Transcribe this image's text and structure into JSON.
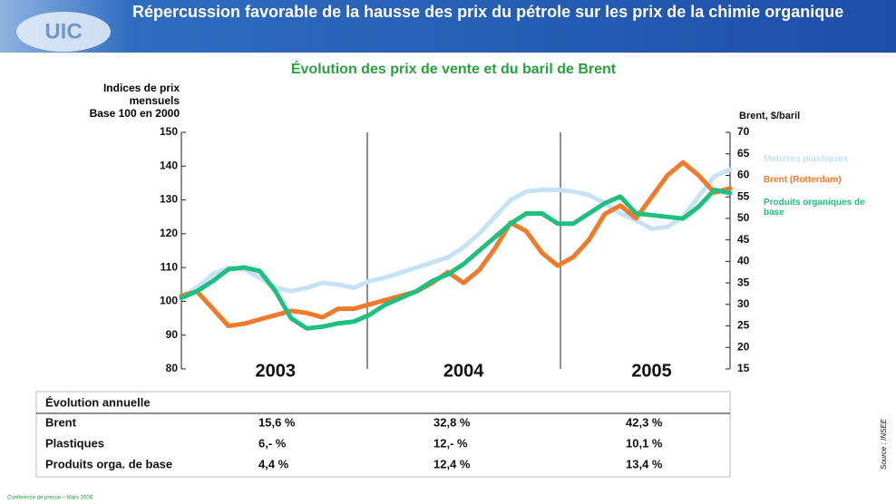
{
  "header": {
    "logo": "UIC",
    "title": "Répercussion favorable de la hausse des prix du pétrole sur les prix de la chimie organique"
  },
  "chart_data": {
    "type": "line",
    "title": "Évolution des prix de vente et du baril de Brent",
    "ylabel": "Indices de prix\nmensuels\nBase 100 en 2000",
    "y2label": "Brent, $/baril",
    "categories": [
      null,
      null,
      null,
      null,
      null,
      null,
      "2003",
      null,
      null,
      null,
      null,
      null,
      null,
      null,
      null,
      null,
      null,
      null,
      "2004",
      null,
      null,
      null,
      null,
      null,
      null,
      null,
      null,
      null,
      null,
      null,
      "2005",
      null,
      null,
      null,
      null,
      null
    ],
    "ylim": [
      80,
      150
    ],
    "yticks": [
      80,
      90,
      100,
      110,
      120,
      130,
      140,
      150
    ],
    "y2lim": [
      15,
      70
    ],
    "y2ticks": [
      15,
      20,
      25,
      30,
      35,
      40,
      45,
      50,
      55,
      60,
      65,
      70
    ],
    "series": [
      {
        "name": "Matières plastiques",
        "color": "#c6e2f7",
        "values": [
          101.5,
          104,
          108,
          110,
          109.5,
          107,
          104,
          103,
          104,
          105.5,
          105,
          104,
          106,
          107,
          108.5,
          110,
          111.5,
          113,
          116,
          120,
          125,
          130,
          132.5,
          133,
          133,
          132.5,
          131.5,
          129,
          126,
          124,
          121.5,
          122,
          125,
          131,
          137,
          139
        ]
      },
      {
        "name": "Brent (Rotterdam)",
        "color": "#f07a2a",
        "axis": "y2",
        "values": [
          32,
          33,
          29,
          25,
          25.5,
          26.5,
          27.5,
          28.5,
          28,
          27,
          29,
          29,
          30,
          31,
          32,
          33,
          35,
          37.5,
          35,
          38,
          43,
          49,
          47,
          42,
          39,
          41,
          45,
          51,
          53,
          50,
          55,
          60,
          63,
          60,
          56,
          57
        ]
      },
      {
        "name": "Produits organiques de base",
        "color": "#1fbf7f",
        "values": [
          101,
          103,
          106,
          109.5,
          110,
          109,
          103,
          95,
          92,
          92.5,
          93.5,
          94,
          96,
          99,
          101,
          103,
          106,
          108,
          111,
          115,
          119,
          123,
          126,
          126,
          123,
          123,
          126,
          129,
          131,
          126,
          125.5,
          125,
          124.5,
          128,
          133,
          132
        ]
      }
    ]
  },
  "table": {
    "title": "Évolution annuelle",
    "rows": [
      [
        "Brent",
        "15,6 %",
        "32,8 %",
        "42,3 %"
      ],
      [
        "Plastiques",
        "6,- %",
        "12,- %",
        "10,1 %"
      ],
      [
        "Produits orga. de base",
        "4,4 %",
        "12,4 %",
        "13,4 %"
      ]
    ]
  },
  "footer": {
    "left": "Conférence de presse – Mars 2006",
    "source": "Source : INSEE"
  }
}
